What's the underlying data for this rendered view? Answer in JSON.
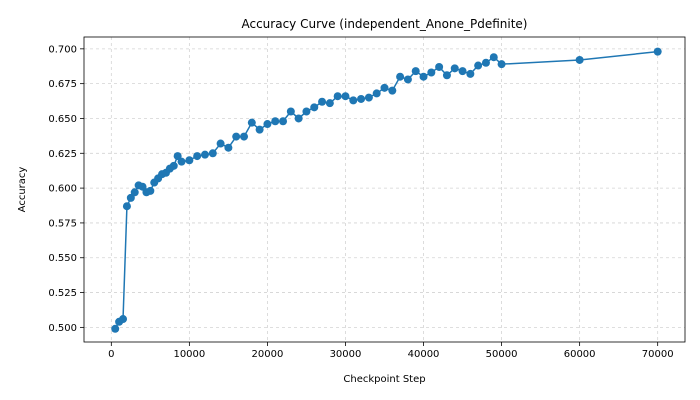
{
  "chart_data": {
    "type": "line",
    "title": "Accuracy Curve (independent_Anone_Pdefinite)",
    "xlabel": "Checkpoint Step",
    "ylabel": "Accuracy",
    "xlim": [
      -3500,
      73500
    ],
    "ylim": [
      0.4895,
      0.7085
    ],
    "xticks": [
      0,
      10000,
      20000,
      30000,
      40000,
      50000,
      60000,
      70000
    ],
    "xtick_labels": [
      "0",
      "10000",
      "20000",
      "30000",
      "40000",
      "50000",
      "60000",
      "70000"
    ],
    "yticks": [
      0.5,
      0.525,
      0.55,
      0.575,
      0.6,
      0.625,
      0.65,
      0.675,
      0.7
    ],
    "ytick_labels": [
      "0.500",
      "0.525",
      "0.550",
      "0.575",
      "0.600",
      "0.625",
      "0.650",
      "0.675",
      "0.700"
    ],
    "grid": true,
    "color": "#1f77b4",
    "x": [
      500,
      1000,
      1500,
      2000,
      2500,
      3000,
      3500,
      4000,
      4500,
      5000,
      5500,
      6000,
      6500,
      7000,
      7500,
      8000,
      8500,
      9000,
      10000,
      11000,
      12000,
      13000,
      14000,
      15000,
      16000,
      17000,
      18000,
      19000,
      20000,
      21000,
      22000,
      23000,
      24000,
      25000,
      26000,
      27000,
      28000,
      29000,
      30000,
      31000,
      32000,
      33000,
      34000,
      35000,
      36000,
      37000,
      38000,
      39000,
      40000,
      41000,
      42000,
      43000,
      44000,
      45000,
      46000,
      47000,
      48000,
      49000,
      50000,
      60000,
      70000
    ],
    "y": [
      0.499,
      0.504,
      0.506,
      0.587,
      0.593,
      0.597,
      0.602,
      0.601,
      0.597,
      0.598,
      0.604,
      0.607,
      0.61,
      0.611,
      0.614,
      0.616,
      0.623,
      0.619,
      0.62,
      0.623,
      0.624,
      0.625,
      0.632,
      0.629,
      0.637,
      0.637,
      0.647,
      0.642,
      0.646,
      0.648,
      0.648,
      0.655,
      0.65,
      0.655,
      0.658,
      0.662,
      0.661,
      0.666,
      0.666,
      0.663,
      0.664,
      0.665,
      0.668,
      0.672,
      0.67,
      0.68,
      0.678,
      0.684,
      0.68,
      0.683,
      0.687,
      0.681,
      0.686,
      0.684,
      0.682,
      0.688,
      0.69,
      0.694,
      0.689,
      0.692,
      0.698
    ]
  }
}
